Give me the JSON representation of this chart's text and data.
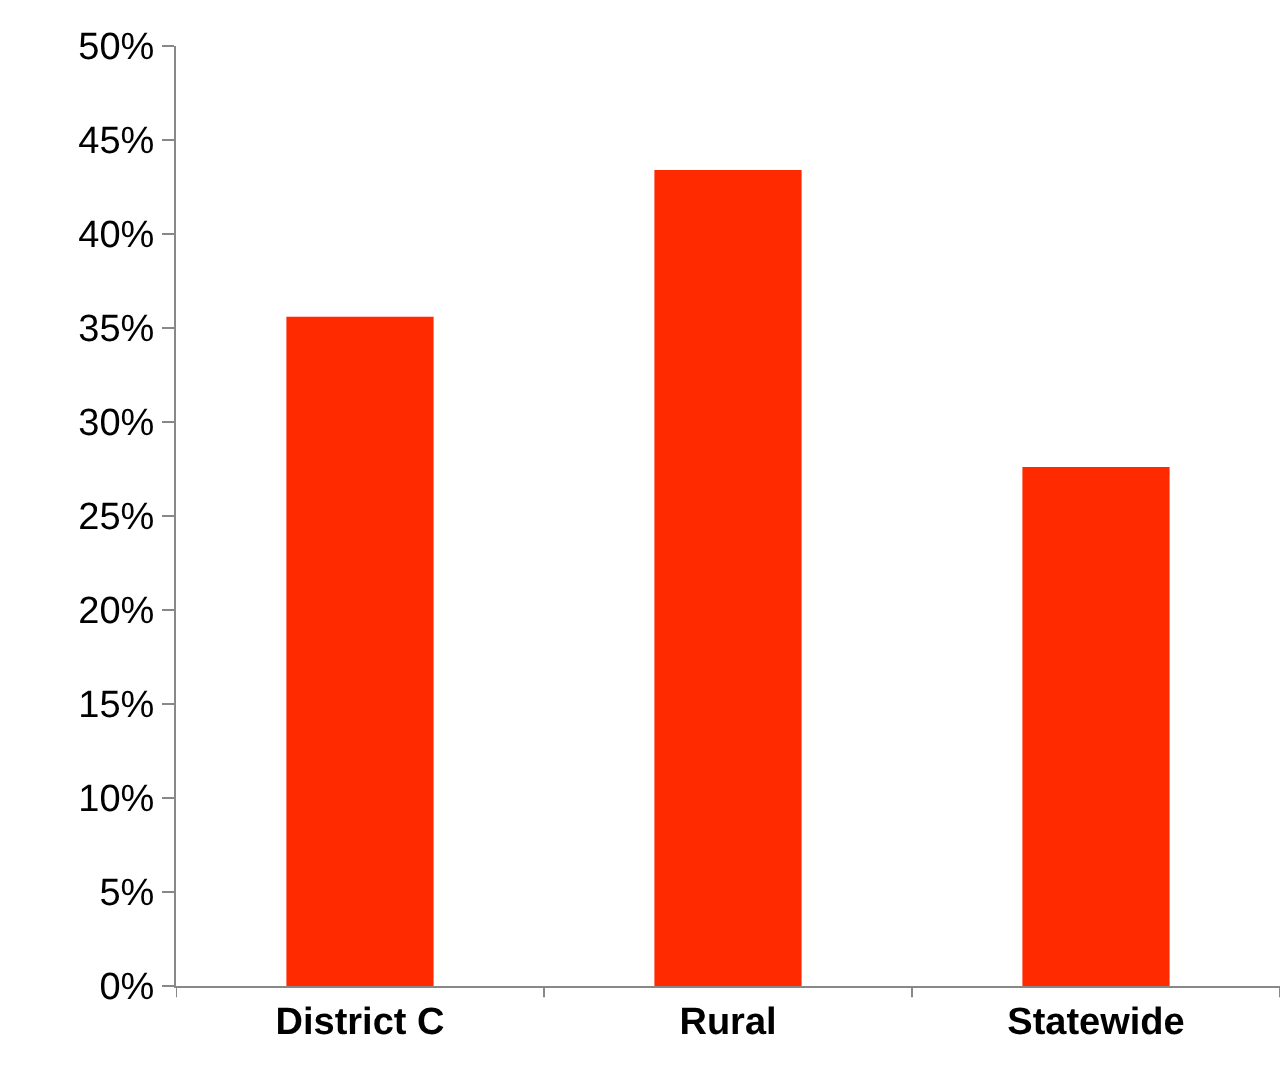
{
  "chart_data": {
    "type": "bar",
    "categories": [
      "District C",
      "Rural",
      "Statewide"
    ],
    "values": [
      35.6,
      43.4,
      27.6
    ],
    "color": "#ff2a00",
    "ylim": [
      0,
      50
    ],
    "yticks": [
      {
        "value": 0,
        "label": "0%"
      },
      {
        "value": 5,
        "label": "5%"
      },
      {
        "value": 10,
        "label": "10%"
      },
      {
        "value": 15,
        "label": "15%"
      },
      {
        "value": 20,
        "label": "20%"
      },
      {
        "value": 25,
        "label": "25%"
      },
      {
        "value": 30,
        "label": "30%"
      },
      {
        "value": 35,
        "label": "35%"
      },
      {
        "value": 40,
        "label": "40%"
      },
      {
        "value": 45,
        "label": "45%"
      },
      {
        "value": 50,
        "label": "50%"
      }
    ]
  }
}
